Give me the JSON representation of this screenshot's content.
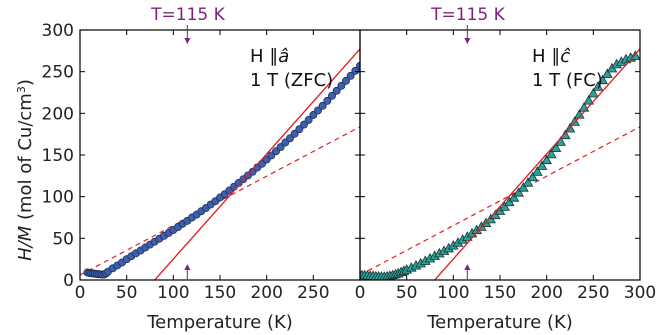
{
  "chart_data": [
    {
      "type": "scatter",
      "panel": "left",
      "ylabel": "H/M (mol of Cu/cm³)",
      "ylabel_prefix": "H/M",
      "ylabel_suffix": " (mol of Cu/cm",
      "ylabel_sup": "3",
      "ylabel_close": ")",
      "xlabel": "Temperature (K)",
      "xlim": [
        0,
        300
      ],
      "ylim": [
        0,
        300
      ],
      "xticks": [
        0,
        50,
        100,
        150,
        200,
        250
      ],
      "yticks": [
        0,
        50,
        100,
        150,
        200,
        250,
        300
      ],
      "annotation_field": "H ∥â",
      "annotation_field_prefix": "H ∥",
      "annotation_field_symbol": "â",
      "annotation_condition": "1 T (ZFC)",
      "top_annotation": "T=115 K",
      "arrow_T": 115,
      "marker": "circle",
      "marker_color": "#3d5fb0",
      "data_T": [
        8,
        10,
        12,
        14,
        16,
        18,
        20,
        22,
        24,
        26,
        28,
        30,
        35,
        40,
        45,
        50,
        55,
        60,
        65,
        70,
        75,
        80,
        85,
        90,
        95,
        100,
        105,
        110,
        115,
        120,
        125,
        130,
        135,
        140,
        145,
        150,
        155,
        160,
        165,
        170,
        175,
        180,
        185,
        190,
        195,
        200,
        205,
        210,
        215,
        220,
        225,
        230,
        235,
        240,
        245,
        250,
        255,
        260,
        265,
        270,
        275,
        280,
        285,
        290,
        295,
        300
      ],
      "data_HM": [
        9,
        8.5,
        8,
        7.8,
        7.5,
        7.3,
        7,
        6.8,
        6.6,
        6.6,
        8,
        10,
        14,
        17.5,
        21,
        25,
        28.5,
        32,
        35.5,
        39,
        42.5,
        46,
        49.5,
        53,
        56.5,
        60,
        63.5,
        67.5,
        71,
        75,
        78.5,
        82.5,
        86.5,
        90.5,
        94.5,
        99,
        103,
        107.5,
        112,
        116.5,
        121,
        125.5,
        130,
        135,
        139.5,
        144.5,
        149.5,
        154.5,
        159.5,
        165,
        170,
        175.5,
        181,
        186.5,
        192,
        198,
        203.5,
        209,
        215,
        221,
        227,
        233,
        239,
        245,
        251,
        257
      ],
      "fit_solid": {
        "x0": 80,
        "slope": 1.26
      },
      "fit_dashed": {
        "y0": 6,
        "slope": 0.593
      },
      "fit_color": "#e02020"
    },
    {
      "type": "scatter",
      "panel": "right",
      "xlabel": "Temperature (K)",
      "xlim": [
        0,
        300
      ],
      "ylim": [
        0,
        300
      ],
      "xticks": [
        0,
        50,
        100,
        150,
        200,
        250,
        300
      ],
      "annotation_field": "H ∥ĉ",
      "annotation_field_prefix": "H ∥",
      "annotation_field_symbol": "ĉ",
      "annotation_condition": "1 T (FC)",
      "top_annotation": "T=115 K",
      "arrow_T": 115,
      "marker": "triangle",
      "marker_color": "#2aa39a",
      "data_T": [
        2,
        5,
        8,
        11,
        14,
        17,
        20,
        23,
        26,
        29,
        32,
        35,
        38,
        41,
        44,
        47,
        50,
        55,
        60,
        65,
        70,
        75,
        80,
        85,
        90,
        95,
        100,
        105,
        110,
        115,
        120,
        125,
        130,
        135,
        140,
        145,
        150,
        155,
        160,
        165,
        170,
        175,
        180,
        185,
        190,
        195,
        200,
        205,
        210,
        215,
        220,
        225,
        230,
        235,
        240,
        245,
        250,
        255,
        260,
        265,
        270,
        275,
        280,
        285,
        290,
        295
      ],
      "data_HM": [
        6,
        6,
        5.5,
        5,
        5,
        4.5,
        4.5,
        4,
        4,
        4.5,
        5,
        6,
        7,
        8,
        9.5,
        11,
        12.5,
        15,
        17.5,
        20,
        23,
        26,
        29,
        32,
        35,
        38,
        41.5,
        45,
        48.5,
        52,
        56,
        60,
        64,
        68.5,
        73,
        78,
        83,
        88,
        93.5,
        99,
        105,
        111,
        117,
        123.5,
        130,
        137,
        144,
        151,
        158.5,
        166,
        174,
        182,
        190,
        198.5,
        207,
        215.5,
        224,
        232,
        240,
        247.5,
        254,
        259,
        262,
        265,
        267,
        269
      ],
      "fit_solid": {
        "x0": 80,
        "slope": 1.26
      },
      "fit_dashed": {
        "y0": 6,
        "slope": 0.593
      },
      "fit_color": "#e02020"
    }
  ]
}
